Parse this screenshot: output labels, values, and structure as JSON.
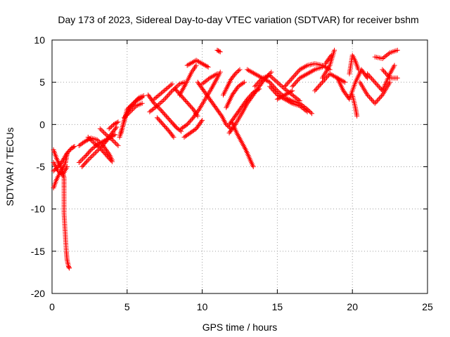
{
  "chart_data": {
    "type": "scatter",
    "title": "Day 173 of 2023, Sidereal Day-to-day VTEC variation (SDTVAR) for receiver bshm",
    "xlabel": "GPS time / hours",
    "ylabel": "SDTVAR / TECUs",
    "xlim": [
      0,
      25
    ],
    "ylim": [
      -20,
      10
    ],
    "xticks": [
      0,
      5,
      10,
      15,
      20,
      25
    ],
    "yticks": [
      -20,
      -15,
      -10,
      -5,
      0,
      5,
      10
    ],
    "grid": true,
    "marker": "+",
    "marker_color": "#ff0000",
    "series": [
      {
        "name": "SDTVAR",
        "tracks": [
          [
            [
              0.1,
              -7.5
            ],
            [
              0.3,
              -6.5
            ],
            [
              0.5,
              -5.8
            ],
            [
              0.7,
              -5.2
            ],
            [
              0.9,
              -4.5
            ],
            [
              1.0,
              -3.5
            ]
          ],
          [
            [
              0.1,
              -3.0
            ],
            [
              0.3,
              -4.0
            ],
            [
              0.5,
              -4.8
            ],
            [
              0.7,
              -5.5
            ],
            [
              0.8,
              -6.3
            ],
            [
              0.8,
              -7.5
            ],
            [
              0.8,
              -9.0
            ],
            [
              0.8,
              -10.5
            ],
            [
              0.85,
              -12.0
            ],
            [
              0.9,
              -13.5
            ],
            [
              0.95,
              -15.0
            ],
            [
              1.0,
              -16.0
            ],
            [
              1.1,
              -16.8
            ],
            [
              1.15,
              -17.0
            ]
          ],
          [
            [
              0.1,
              -5.5
            ],
            [
              0.4,
              -5.0
            ],
            [
              0.7,
              -4.3
            ],
            [
              1.0,
              -3.4
            ],
            [
              1.3,
              -2.8
            ],
            [
              1.5,
              -2.6
            ]
          ],
          [
            [
              0.1,
              -4.5
            ],
            [
              0.4,
              -5.5
            ],
            [
              0.7,
              -6.0
            ],
            [
              1.0,
              -5.0
            ]
          ],
          [
            [
              1.8,
              -4.5
            ],
            [
              2.2,
              -3.8
            ],
            [
              2.6,
              -3.0
            ],
            [
              3.0,
              -2.4
            ],
            [
              3.4,
              -2.0
            ],
            [
              3.8,
              -1.6
            ],
            [
              4.2,
              -1.2
            ]
          ],
          [
            [
              1.8,
              -2.5
            ],
            [
              2.2,
              -2.0
            ],
            [
              2.6,
              -1.6
            ],
            [
              3.0,
              -1.8
            ],
            [
              3.4,
              -2.5
            ],
            [
              3.8,
              -3.5
            ],
            [
              4.0,
              -4.2
            ]
          ],
          [
            [
              2.0,
              -5.0
            ],
            [
              2.4,
              -4.2
            ],
            [
              2.8,
              -3.5
            ],
            [
              3.2,
              -2.8
            ],
            [
              3.6,
              -2.0
            ],
            [
              4.0,
              -1.0
            ],
            [
              4.3,
              -0.3
            ]
          ],
          [
            [
              2.4,
              -1.5
            ],
            [
              2.8,
              -2.2
            ],
            [
              3.2,
              -2.8
            ],
            [
              3.6,
              -3.6
            ],
            [
              4.0,
              -4.4
            ]
          ],
          [
            [
              3.2,
              -0.5
            ],
            [
              3.6,
              -1.2
            ],
            [
              4.0,
              -1.8
            ],
            [
              4.4,
              -2.5
            ]
          ],
          [
            [
              3.8,
              -0.5
            ],
            [
              4.1,
              0.0
            ],
            [
              4.4,
              0.3
            ]
          ],
          [
            [
              4.5,
              -1.5
            ],
            [
              4.9,
              1.0
            ],
            [
              5.2,
              2.0
            ],
            [
              5.6,
              2.8
            ],
            [
              6.0,
              3.2
            ]
          ],
          [
            [
              4.6,
              -1.0
            ],
            [
              5.0,
              1.8
            ],
            [
              5.4,
              2.5
            ],
            [
              5.8,
              3.2
            ],
            [
              6.1,
              3.4
            ]
          ],
          [
            [
              4.8,
              0.8
            ],
            [
              5.2,
              1.5
            ],
            [
              5.6,
              2.2
            ],
            [
              6.0,
              2.5
            ]
          ],
          [
            [
              6.4,
              3.5
            ],
            [
              6.8,
              2.5
            ],
            [
              7.2,
              1.8
            ],
            [
              7.6,
              1.0
            ],
            [
              8.0,
              0.2
            ],
            [
              8.3,
              -0.4
            ],
            [
              8.6,
              -0.8
            ]
          ],
          [
            [
              6.5,
              1.5
            ],
            [
              7.0,
              2.2
            ],
            [
              7.5,
              3.0
            ],
            [
              8.0,
              4.0
            ],
            [
              8.5,
              4.8
            ],
            [
              8.8,
              5.0
            ]
          ],
          [
            [
              6.8,
              3.0
            ],
            [
              7.2,
              3.6
            ],
            [
              7.6,
              4.2
            ],
            [
              8.0,
              4.8
            ]
          ],
          [
            [
              7.0,
              0.8
            ],
            [
              7.4,
              0.0
            ],
            [
              7.8,
              -0.8
            ],
            [
              8.1,
              -1.5
            ]
          ],
          [
            [
              8.2,
              4.2
            ],
            [
              8.6,
              3.4
            ],
            [
              9.0,
              2.6
            ],
            [
              9.4,
              1.8
            ],
            [
              9.7,
              1.0
            ]
          ],
          [
            [
              8.6,
              -0.5
            ],
            [
              9.0,
              0.0
            ],
            [
              9.4,
              0.8
            ],
            [
              9.8,
              1.8
            ],
            [
              10.2,
              3.0
            ],
            [
              10.6,
              4.2
            ],
            [
              11.0,
              5.5
            ],
            [
              11.2,
              6.2
            ]
          ],
          [
            [
              8.8,
              -1.5
            ],
            [
              9.2,
              -1.0
            ],
            [
              9.6,
              -0.5
            ],
            [
              10.0,
              0.5
            ]
          ],
          [
            [
              8.5,
              3.5
            ],
            [
              8.9,
              4.8
            ],
            [
              9.3,
              6.2
            ],
            [
              9.6,
              7.0
            ]
          ],
          [
            [
              9.0,
              7.0
            ],
            [
              9.6,
              7.6
            ],
            [
              10.0,
              7.2
            ],
            [
              10.4,
              6.8
            ]
          ],
          [
            [
              9.7,
              5.0
            ],
            [
              10.1,
              4.0
            ],
            [
              10.5,
              3.0
            ],
            [
              10.9,
              2.0
            ],
            [
              11.3,
              1.0
            ],
            [
              11.6,
              0.0
            ],
            [
              11.9,
              -0.5
            ]
          ],
          [
            [
              10.0,
              4.8
            ],
            [
              10.5,
              5.5
            ],
            [
              11.0,
              6.0
            ]
          ],
          [
            [
              11.0,
              8.8
            ],
            [
              11.2,
              8.6
            ]
          ],
          [
            [
              11.4,
              3.5
            ],
            [
              11.6,
              4.2
            ],
            [
              11.9,
              5.3
            ],
            [
              12.2,
              6.0
            ],
            [
              12.5,
              6.5
            ]
          ],
          [
            [
              11.6,
              2.0
            ],
            [
              12.0,
              3.5
            ],
            [
              12.4,
              4.5
            ],
            [
              12.8,
              5.0
            ]
          ],
          [
            [
              11.8,
              0.0
            ],
            [
              12.2,
              1.0
            ],
            [
              12.6,
              2.0
            ],
            [
              13.0,
              3.0
            ],
            [
              13.4,
              3.8
            ],
            [
              13.8,
              4.2
            ]
          ],
          [
            [
              11.8,
              -1.0
            ],
            [
              12.2,
              0.0
            ],
            [
              12.6,
              1.2
            ],
            [
              13.0,
              2.5
            ],
            [
              13.4,
              3.5
            ],
            [
              13.8,
              4.5
            ],
            [
              14.2,
              5.5
            ],
            [
              14.6,
              6.2
            ]
          ],
          [
            [
              12.0,
              0.2
            ],
            [
              12.3,
              -1.0
            ],
            [
              12.6,
              -2.0
            ],
            [
              12.9,
              -3.0
            ],
            [
              13.2,
              -4.2
            ],
            [
              13.4,
              -5.0
            ]
          ],
          [
            [
              13.0,
              6.5
            ],
            [
              13.5,
              6.0
            ],
            [
              14.0,
              5.5
            ],
            [
              14.5,
              5.0
            ],
            [
              15.0,
              4.0
            ],
            [
              15.5,
              3.2
            ],
            [
              16.0,
              2.8
            ],
            [
              16.5,
              2.5
            ],
            [
              17.0,
              1.8
            ],
            [
              17.3,
              1.3
            ]
          ],
          [
            [
              13.5,
              4.5
            ],
            [
              14.0,
              5.5
            ],
            [
              14.5,
              5.8
            ],
            [
              15.0,
              5.0
            ],
            [
              15.5,
              4.2
            ],
            [
              16.0,
              3.5
            ],
            [
              16.5,
              2.8
            ]
          ],
          [
            [
              14.5,
              4.5
            ],
            [
              15.0,
              3.5
            ],
            [
              15.5,
              3.0
            ],
            [
              16.0,
              2.5
            ],
            [
              16.5,
              2.2
            ],
            [
              17.0,
              1.5
            ]
          ],
          [
            [
              15.0,
              3.0
            ],
            [
              15.5,
              3.5
            ],
            [
              16.0,
              4.0
            ]
          ],
          [
            [
              15.5,
              4.5
            ],
            [
              16.0,
              5.5
            ],
            [
              16.5,
              6.5
            ],
            [
              17.0,
              7.0
            ],
            [
              17.5,
              7.2
            ],
            [
              18.0,
              7.0
            ],
            [
              18.5,
              6.5
            ]
          ],
          [
            [
              16.0,
              4.5
            ],
            [
              16.5,
              5.5
            ],
            [
              17.0,
              6.0
            ],
            [
              17.5,
              6.5
            ],
            [
              18.0,
              6.8
            ]
          ],
          [
            [
              17.5,
              4.0
            ],
            [
              18.0,
              5.0
            ],
            [
              18.5,
              6.0
            ],
            [
              19.0,
              5.5
            ],
            [
              19.5,
              5.0
            ]
          ],
          [
            [
              18.0,
              5.5
            ],
            [
              18.5,
              7.0
            ],
            [
              18.8,
              8.8
            ]
          ],
          [
            [
              18.2,
              7.2
            ],
            [
              18.6,
              8.2
            ]
          ],
          [
            [
              19.0,
              5.5
            ],
            [
              19.4,
              4.0
            ],
            [
              19.8,
              3.0
            ],
            [
              20.2,
              5.0
            ],
            [
              20.6,
              6.5
            ],
            [
              21.0,
              5.5
            ]
          ],
          [
            [
              19.8,
              6.0
            ],
            [
              20.0,
              8.2
            ],
            [
              20.2,
              7.5
            ],
            [
              20.4,
              6.5
            ]
          ],
          [
            [
              20.0,
              3.5
            ],
            [
              20.2,
              2.0
            ],
            [
              20.3,
              1.0
            ]
          ],
          [
            [
              20.5,
              5.0
            ],
            [
              21.0,
              3.5
            ],
            [
              21.5,
              2.5
            ],
            [
              22.0,
              3.5
            ],
            [
              22.5,
              5.0
            ]
          ],
          [
            [
              21.0,
              6.0
            ],
            [
              21.5,
              5.0
            ],
            [
              22.0,
              4.0
            ],
            [
              22.5,
              6.0
            ],
            [
              22.8,
              7.0
            ]
          ],
          [
            [
              21.5,
              8.0
            ],
            [
              22.0,
              7.8
            ],
            [
              22.5,
              8.5
            ],
            [
              23.0,
              8.8
            ]
          ],
          [
            [
              22.0,
              6.5
            ],
            [
              22.5,
              5.5
            ],
            [
              23.0,
              5.5
            ]
          ]
        ]
      }
    ]
  }
}
